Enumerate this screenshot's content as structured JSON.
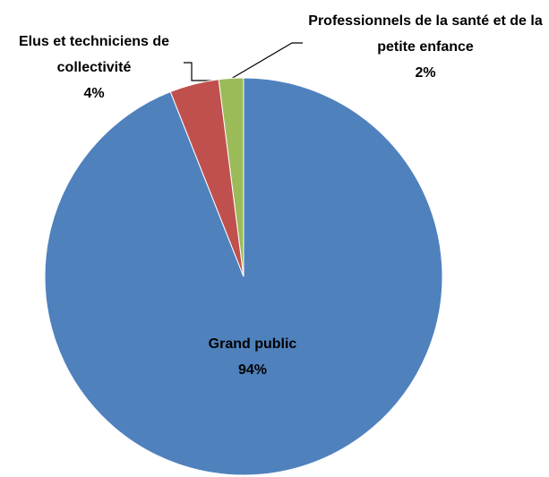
{
  "chart_data": {
    "type": "pie",
    "categories": [
      "Grand public",
      "Elus et techniciens de collectivité",
      "Professionnels de la santé et de la petite enfance"
    ],
    "values": [
      94,
      4,
      2
    ],
    "value_labels": [
      "94%",
      "4%",
      "2%"
    ],
    "colors": [
      "#4f81bd",
      "#c0504d",
      "#9bbb59"
    ]
  }
}
